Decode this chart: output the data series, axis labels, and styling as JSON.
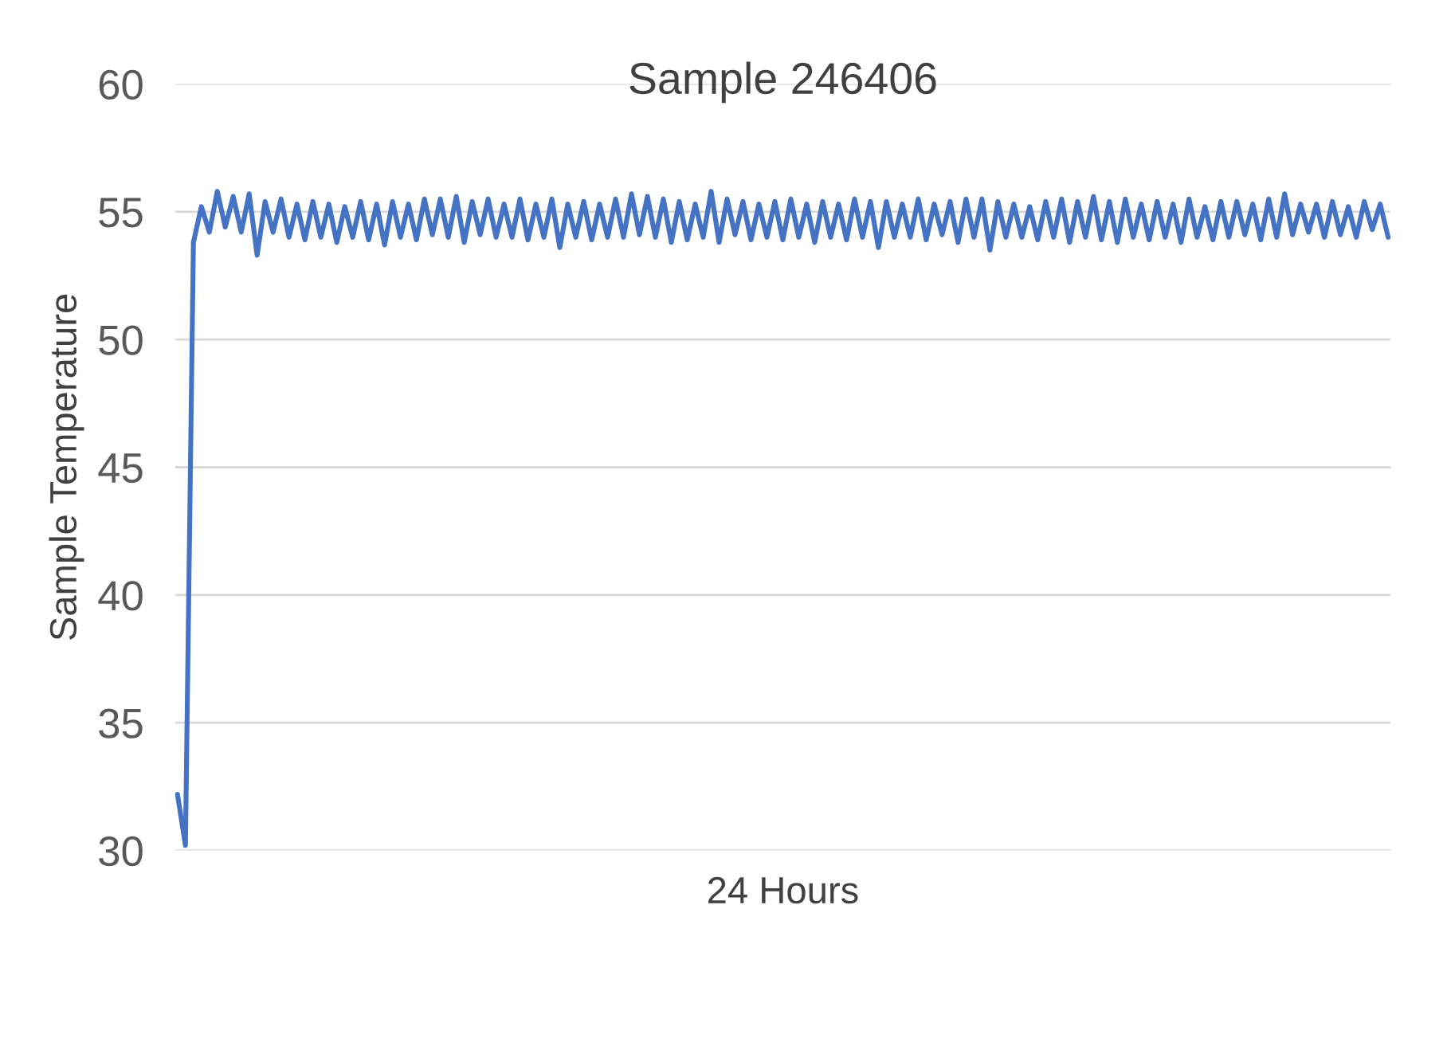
{
  "chart_data": {
    "type": "line",
    "title": "Sample 246406",
    "xlabel": "24 Hours",
    "ylabel": "Sample Temperature",
    "categories": [
      null,
      null,
      null,
      null,
      null,
      null,
      null,
      null,
      null,
      null,
      null,
      null,
      null,
      null,
      null,
      null,
      null,
      null,
      null,
      null,
      null,
      null,
      null,
      null,
      null,
      null,
      null,
      null,
      null,
      null,
      null,
      null,
      null,
      null,
      null,
      null,
      null,
      null,
      null,
      null,
      null,
      null,
      null,
      null,
      null,
      null,
      null,
      null,
      null,
      null,
      null,
      null,
      null,
      null,
      null,
      null,
      null,
      null,
      null,
      null,
      null,
      null,
      null,
      null,
      null,
      null,
      null,
      null,
      null,
      null,
      null,
      null,
      null,
      null,
      null,
      null,
      null,
      null,
      null,
      null,
      null,
      null,
      null,
      null,
      null,
      null,
      null,
      null,
      null,
      null,
      null,
      null,
      null,
      null,
      null,
      null,
      null,
      null,
      null,
      null,
      null,
      null,
      null,
      null,
      null,
      null,
      null,
      null,
      null,
      null,
      null,
      null,
      null,
      null,
      null,
      null,
      null,
      null,
      null,
      null,
      null,
      null,
      null,
      null,
      null,
      null,
      null,
      null,
      null,
      null,
      null,
      null,
      null,
      null,
      null,
      null,
      null,
      null,
      null,
      null,
      null,
      null,
      null,
      null,
      null,
      null,
      null,
      null,
      null,
      null,
      null,
      null,
      null
    ],
    "series": [
      {
        "color": "#4472c4",
        "values": [
          32.2,
          30.2,
          53.8,
          55.2,
          54.2,
          55.8,
          54.4,
          55.6,
          54.2,
          55.7,
          53.3,
          55.4,
          54.2,
          55.5,
          54.0,
          55.3,
          53.9,
          55.4,
          54.0,
          55.3,
          53.8,
          55.2,
          54.0,
          55.4,
          53.9,
          55.3,
          53.7,
          55.4,
          54.0,
          55.3,
          53.9,
          55.5,
          54.1,
          55.5,
          54.0,
          55.6,
          53.8,
          55.4,
          54.1,
          55.5,
          54.0,
          55.3,
          54.0,
          55.5,
          53.9,
          55.3,
          54.0,
          55.5,
          53.6,
          55.3,
          54.0,
          55.4,
          53.9,
          55.3,
          54.0,
          55.5,
          54.0,
          55.7,
          54.1,
          55.6,
          54.0,
          55.5,
          53.8,
          55.4,
          53.9,
          55.3,
          54.0,
          55.8,
          53.8,
          55.5,
          54.1,
          55.4,
          53.9,
          55.3,
          54.0,
          55.4,
          53.9,
          55.5,
          54.0,
          55.3,
          53.8,
          55.4,
          54.0,
          55.3,
          53.9,
          55.5,
          54.0,
          55.4,
          53.6,
          55.4,
          54.0,
          55.3,
          54.0,
          55.5,
          53.9,
          55.3,
          54.1,
          55.4,
          53.8,
          55.5,
          54.0,
          55.5,
          53.5,
          55.4,
          54.0,
          55.3,
          54.0,
          55.2,
          53.9,
          55.4,
          54.0,
          55.5,
          53.8,
          55.4,
          54.0,
          55.6,
          53.9,
          55.4,
          53.8,
          55.5,
          54.0,
          55.3,
          53.9,
          55.4,
          54.0,
          55.3,
          53.8,
          55.5,
          54.0,
          55.2,
          53.9,
          55.4,
          54.0,
          55.4,
          54.1,
          55.3,
          53.9,
          55.5,
          54.0,
          55.7,
          54.1,
          55.3,
          54.2,
          55.3,
          54.0,
          55.4,
          54.1,
          55.2,
          54.0,
          55.4,
          54.3,
          55.3,
          54.0
        ]
      }
    ],
    "ylim": [
      30,
      60
    ],
    "yticks": [
      30,
      35,
      40,
      45,
      50,
      55,
      60
    ],
    "grid": "y",
    "marker": "none",
    "line_style": "solid"
  }
}
